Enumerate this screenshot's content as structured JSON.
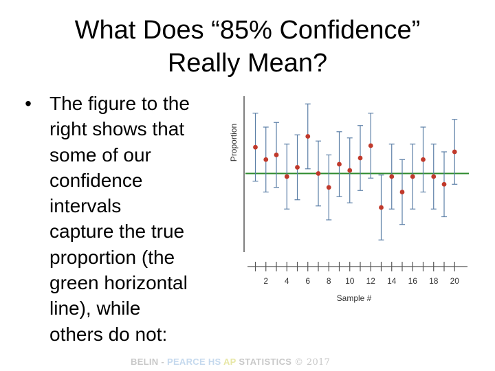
{
  "slide": {
    "title_lines": [
      "What Does “85% Confidence”",
      "Really Mean?"
    ],
    "bullet_symbol": "•",
    "bullet_lines": [
      "The figure to the",
      "right shows that",
      "some of our",
      "confidence",
      "intervals",
      "capture the true",
      "proportion (the",
      "green horizontal",
      "line), while",
      "others do not:"
    ],
    "footer": {
      "part1": "BELIN -",
      "part2": "PEARCE HS",
      "part3": "AP",
      "part4": "STATISTICS",
      "part5": "© 2017"
    }
  },
  "chart_data": {
    "type": "scatter",
    "xlabel": "Sample #",
    "ylabel": "Proportion",
    "x_tick_labels": [
      "2",
      "4",
      "6",
      "8",
      "10",
      "12",
      "14",
      "16",
      "18",
      "20"
    ],
    "xlim": [
      0,
      20
    ],
    "ylim": [
      0,
      1
    ],
    "true_proportion": 0.5,
    "grid": false,
    "points": [
      {
        "x": 1,
        "y": 0.585,
        "lower": 0.475,
        "upper": 0.695
      },
      {
        "x": 2,
        "y": 0.545,
        "lower": 0.44,
        "upper": 0.65
      },
      {
        "x": 3,
        "y": 0.56,
        "lower": 0.455,
        "upper": 0.665
      },
      {
        "x": 4,
        "y": 0.49,
        "lower": 0.385,
        "upper": 0.595
      },
      {
        "x": 5,
        "y": 0.52,
        "lower": 0.415,
        "upper": 0.625
      },
      {
        "x": 6,
        "y": 0.62,
        "lower": 0.515,
        "upper": 0.725
      },
      {
        "x": 7,
        "y": 0.5,
        "lower": 0.395,
        "upper": 0.605
      },
      {
        "x": 8,
        "y": 0.455,
        "lower": 0.35,
        "upper": 0.56
      },
      {
        "x": 9,
        "y": 0.53,
        "lower": 0.425,
        "upper": 0.635
      },
      {
        "x": 10,
        "y": 0.51,
        "lower": 0.405,
        "upper": 0.615
      },
      {
        "x": 11,
        "y": 0.55,
        "lower": 0.445,
        "upper": 0.655
      },
      {
        "x": 12,
        "y": 0.59,
        "lower": 0.485,
        "upper": 0.695
      },
      {
        "x": 13,
        "y": 0.39,
        "lower": 0.285,
        "upper": 0.495
      },
      {
        "x": 14,
        "y": 0.49,
        "lower": 0.385,
        "upper": 0.595
      },
      {
        "x": 15,
        "y": 0.44,
        "lower": 0.335,
        "upper": 0.545
      },
      {
        "x": 16,
        "y": 0.49,
        "lower": 0.385,
        "upper": 0.595
      },
      {
        "x": 17,
        "y": 0.545,
        "lower": 0.44,
        "upper": 0.65
      },
      {
        "x": 18,
        "y": 0.49,
        "lower": 0.385,
        "upper": 0.595
      },
      {
        "x": 19,
        "y": 0.465,
        "lower": 0.36,
        "upper": 0.57
      },
      {
        "x": 20,
        "y": 0.57,
        "lower": 0.465,
        "upper": 0.675
      }
    ],
    "colors": {
      "point": "#c0392b",
      "interval": "#5b7fa6",
      "true_line": "#2e8b2e",
      "axis": "#555555"
    }
  }
}
